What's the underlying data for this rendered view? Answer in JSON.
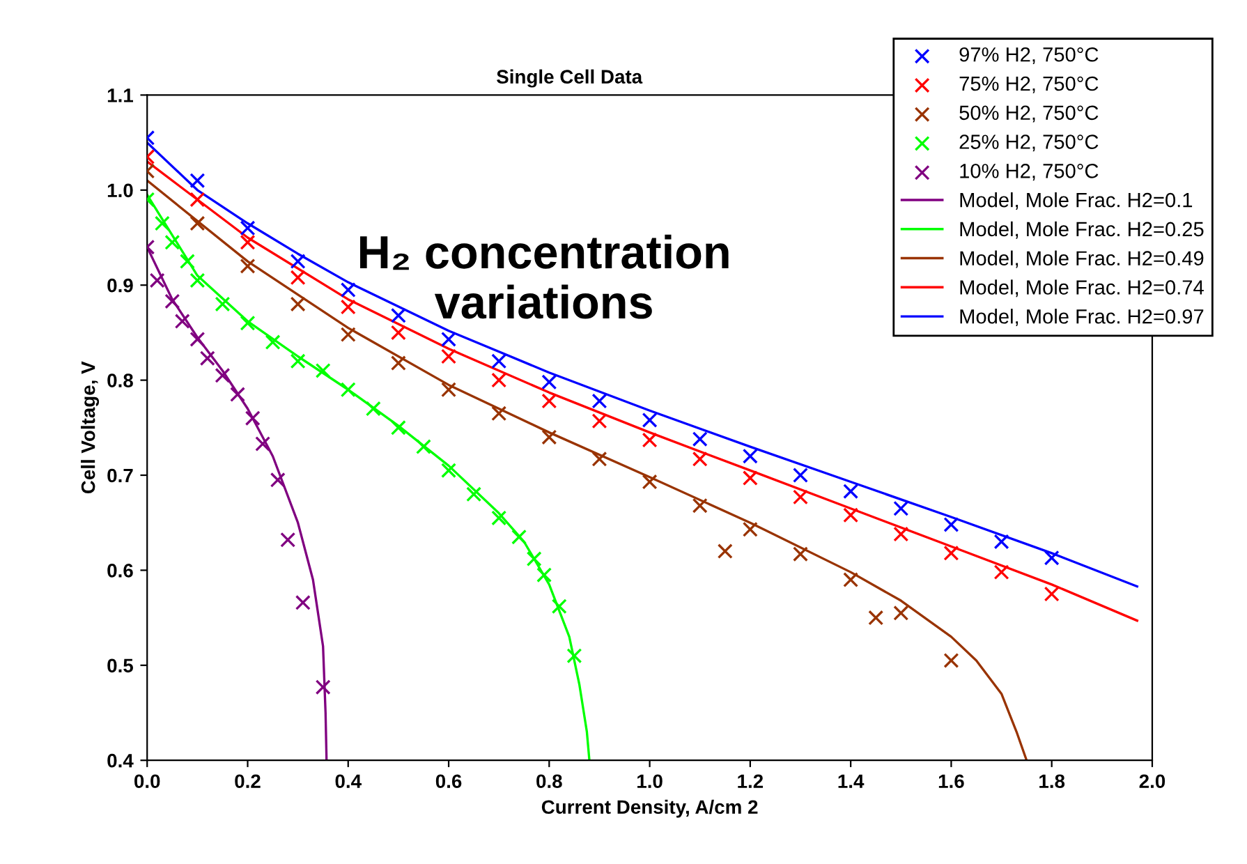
{
  "chart_data": {
    "type": "line",
    "title": "Single Cell Data",
    "xlabel": "Current Density, A/cm 2",
    "ylabel": "Cell Voltage, V",
    "annotations": [
      "H₂ concentration\nvariations"
    ],
    "xlim": [
      0.0,
      2.0
    ],
    "ylim": [
      0.4,
      1.1
    ],
    "xticks": [
      {
        "value": 0.0,
        "label": "0.0"
      },
      {
        "value": 0.2,
        "label": "0.2"
      },
      {
        "value": 0.4,
        "label": "0.4"
      },
      {
        "value": 0.6,
        "label": "0.6"
      },
      {
        "value": 0.8,
        "label": "0.8"
      },
      {
        "value": 1.0,
        "label": "1.0"
      },
      {
        "value": 1.2,
        "label": "1.2"
      },
      {
        "value": 1.4,
        "label": "1.4"
      },
      {
        "value": 1.6,
        "label": "1.6"
      },
      {
        "value": 1.8,
        "label": "1.8"
      },
      {
        "value": 2.0,
        "label": "2.0"
      }
    ],
    "yticks": [
      {
        "value": 0.4,
        "label": "0.4"
      },
      {
        "value": 0.5,
        "label": "0.5"
      },
      {
        "value": 0.6,
        "label": "0.6"
      },
      {
        "value": 0.7,
        "label": "0.7"
      },
      {
        "value": 0.8,
        "label": "0.8"
      },
      {
        "value": 0.9,
        "label": "0.9"
      },
      {
        "value": 1.0,
        "label": "1.0"
      },
      {
        "value": 1.1,
        "label": "1.1"
      }
    ],
    "grid": false,
    "legend": "top right",
    "series": [
      {
        "name": "97% H2, 750°C",
        "type": "scatter",
        "marker": "cross",
        "color": "#0000ff",
        "x": [
          0,
          0.1,
          0.2,
          0.3,
          0.4,
          0.5,
          0.6,
          0.7,
          0.8,
          0.9,
          1.0,
          1.1,
          1.2,
          1.3,
          1.4,
          1.5,
          1.6,
          1.7,
          1.8
        ],
        "values": [
          1.055,
          1.01,
          0.96,
          0.925,
          0.895,
          0.868,
          0.843,
          0.82,
          0.798,
          0.778,
          0.758,
          0.738,
          0.72,
          0.7,
          0.683,
          0.665,
          0.648,
          0.63,
          0.613
        ]
      },
      {
        "name": "75% H2, 750°C",
        "type": "scatter",
        "marker": "cross",
        "color": "#ff0000",
        "x": [
          0,
          0.1,
          0.2,
          0.3,
          0.4,
          0.5,
          0.6,
          0.7,
          0.8,
          0.9,
          1.0,
          1.1,
          1.2,
          1.3,
          1.4,
          1.5,
          1.6,
          1.7,
          1.8
        ],
        "values": [
          1.035,
          0.99,
          0.945,
          0.908,
          0.877,
          0.85,
          0.825,
          0.8,
          0.778,
          0.757,
          0.737,
          0.717,
          0.697,
          0.677,
          0.658,
          0.638,
          0.618,
          0.598,
          0.575
        ]
      },
      {
        "name": "50% H2, 750°C",
        "type": "scatter",
        "marker": "cross",
        "color": "#993300",
        "x": [
          0,
          0.1,
          0.2,
          0.3,
          0.4,
          0.5,
          0.6,
          0.7,
          0.8,
          0.9,
          1.0,
          1.1,
          1.15,
          1.2,
          1.3,
          1.4,
          1.45,
          1.5,
          1.6
        ],
        "values": [
          1.02,
          0.965,
          0.92,
          0.88,
          0.848,
          0.818,
          0.79,
          0.765,
          0.74,
          0.717,
          0.693,
          0.668,
          0.62,
          0.643,
          0.617,
          0.59,
          0.55,
          0.555,
          0.505
        ]
      },
      {
        "name": "25% H2, 750°C",
        "type": "scatter",
        "marker": "cross",
        "color": "#00ff00",
        "x": [
          0,
          0.03,
          0.05,
          0.08,
          0.1,
          0.15,
          0.2,
          0.25,
          0.3,
          0.35,
          0.4,
          0.45,
          0.5,
          0.55,
          0.6,
          0.65,
          0.7,
          0.74,
          0.77,
          0.79,
          0.82,
          0.85
        ],
        "values": [
          0.99,
          0.965,
          0.945,
          0.925,
          0.905,
          0.88,
          0.86,
          0.84,
          0.82,
          0.81,
          0.79,
          0.77,
          0.75,
          0.73,
          0.705,
          0.68,
          0.655,
          0.635,
          0.612,
          0.595,
          0.562,
          0.51
        ]
      },
      {
        "name": "10% H2, 750°C",
        "type": "scatter",
        "marker": "cross",
        "color": "#800080",
        "x": [
          0,
          0.02,
          0.05,
          0.07,
          0.1,
          0.12,
          0.15,
          0.18,
          0.21,
          0.23,
          0.26,
          0.28,
          0.31,
          0.35
        ],
        "values": [
          0.94,
          0.905,
          0.883,
          0.862,
          0.843,
          0.823,
          0.805,
          0.785,
          0.76,
          0.733,
          0.695,
          0.632,
          0.566,
          0.477
        ]
      },
      {
        "name": "Model, Mole Frac. H2=0.1",
        "marker": "none",
        "line_style": "solid",
        "color": "#800080",
        "x": [
          0,
          0.05,
          0.1,
          0.15,
          0.2,
          0.25,
          0.3,
          0.33,
          0.35,
          0.355,
          0.357
        ],
        "values": [
          0.94,
          0.885,
          0.845,
          0.81,
          0.77,
          0.72,
          0.65,
          0.59,
          0.52,
          0.45,
          0.4
        ]
      },
      {
        "name": "Model, Mole Frac. H2=0.25",
        "marker": "none",
        "line_style": "solid",
        "color": "#00ff00",
        "x": [
          0,
          0.1,
          0.2,
          0.3,
          0.4,
          0.5,
          0.6,
          0.7,
          0.75,
          0.8,
          0.84,
          0.86,
          0.875,
          0.88
        ],
        "values": [
          0.995,
          0.91,
          0.862,
          0.825,
          0.79,
          0.752,
          0.71,
          0.66,
          0.63,
          0.585,
          0.53,
          0.48,
          0.43,
          0.4
        ]
      },
      {
        "name": "Model, Mole Frac. H2=0.49",
        "marker": "none",
        "line_style": "solid",
        "color": "#993300",
        "x": [
          0,
          0.2,
          0.4,
          0.6,
          0.8,
          1.0,
          1.2,
          1.4,
          1.5,
          1.6,
          1.65,
          1.7,
          1.73,
          1.75
        ],
        "values": [
          1.01,
          0.925,
          0.855,
          0.795,
          0.745,
          0.698,
          0.65,
          0.598,
          0.568,
          0.53,
          0.505,
          0.47,
          0.43,
          0.4
        ]
      },
      {
        "name": "Model, Mole Frac. H2=0.74",
        "marker": "none",
        "line_style": "solid",
        "color": "#ff0000",
        "x": [
          0,
          0.2,
          0.4,
          0.6,
          0.8,
          1.0,
          1.2,
          1.4,
          1.6,
          1.8,
          1.97
        ],
        "values": [
          1.03,
          0.95,
          0.885,
          0.833,
          0.787,
          0.745,
          0.705,
          0.665,
          0.625,
          0.585,
          0.547
        ]
      },
      {
        "name": "Model, Mole Frac. H2=0.97",
        "marker": "none",
        "line_style": "solid",
        "color": "#0000ff",
        "x": [
          0,
          0.1,
          0.2,
          0.3,
          0.4,
          0.6,
          0.8,
          1.0,
          1.2,
          1.4,
          1.6,
          1.8,
          1.97
        ],
        "values": [
          1.05,
          1.0,
          0.965,
          0.933,
          0.903,
          0.852,
          0.808,
          0.768,
          0.73,
          0.693,
          0.656,
          0.618,
          0.583
        ]
      }
    ]
  }
}
